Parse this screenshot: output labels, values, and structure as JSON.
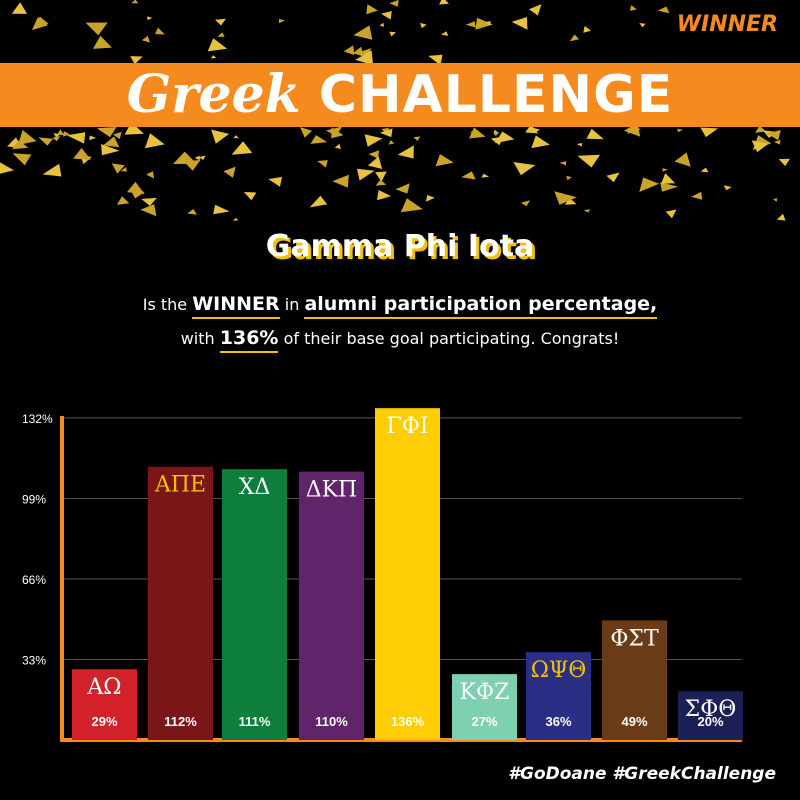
{
  "header": {
    "tag": "WINNER",
    "title_script": "Greek",
    "title_bold": "CHALLENGE"
  },
  "winner": {
    "name": "Gamma Phi Iota",
    "line1_pre": "Is the",
    "line1_winner": "WINNER",
    "line1_mid": "in",
    "line1_metric": "alumni participation percentage,",
    "line2_pre": "with",
    "line2_value": "136%",
    "line2_post": "of their base goal participating. Congrats!"
  },
  "footer": {
    "hashtags": "#GoDoane #GreekChallenge"
  },
  "colors": {
    "accent": "#f58a1f",
    "gold": "#f2c200",
    "background": "#000000"
  },
  "chart_data": {
    "type": "bar",
    "ylim": [
      0,
      135
    ],
    "yticks": [
      {
        "value": 33,
        "label": "33%"
      },
      {
        "value": 66,
        "label": "66%"
      },
      {
        "value": 99,
        "label": "99%"
      },
      {
        "value": 132,
        "label": "132%"
      }
    ],
    "grid": true,
    "categories": [
      "ΑΩ",
      "ΑΠΕ",
      "ΧΔ",
      "ΔΚΠ",
      "ΓΦΙ",
      "ΚΦΖ",
      "ΩΨΘ",
      "ΦΣΤ",
      "ΣΦΘ"
    ],
    "values": [
      29,
      112,
      111,
      110,
      136,
      27,
      36,
      49,
      20
    ],
    "value_labels": [
      "29%",
      "112%",
      "111%",
      "110%",
      "136%",
      "27%",
      "36%",
      "49%",
      "20%"
    ],
    "bar_colors": [
      "#d3212a",
      "#7a1518",
      "#0d7e3c",
      "#5f2469",
      "#fecd06",
      "#7fcfb1",
      "#2b2e85",
      "#6a3b16",
      "#1d1f57"
    ],
    "name_colors": [
      "#ffffff",
      "#f2c200",
      "#ffffff",
      "#ffffff",
      "#ffffff",
      "#ffffff",
      "#f2c200",
      "#ffffff",
      "#ffffff"
    ]
  }
}
